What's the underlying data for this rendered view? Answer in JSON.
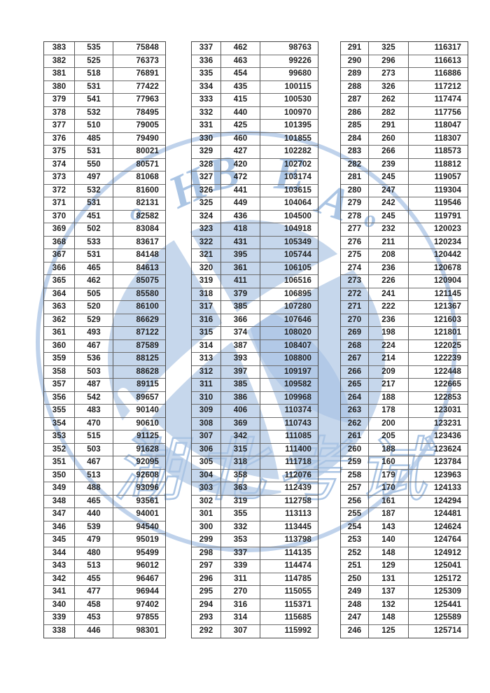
{
  "document": {
    "type": "score-segment-statistics-table",
    "columns_meaning": [
      "score",
      "count_at_score",
      "cumulative_count"
    ]
  },
  "watermark": {
    "letters": [
      "o",
      "H",
      "B",
      "E",
      "A",
      "o"
    ],
    "cjk_text": "湖北考试",
    "blue": "#b6cae6",
    "letter_blue": "#a7c2e3",
    "globe_fill": "#c3d5ec"
  },
  "colors": {
    "table_outer_border": "#464646",
    "table_inner_border": "#6e6e6e",
    "text": "#1d1d1d",
    "page_background": "#ffffff"
  },
  "tables": [
    {
      "rows": [
        [
          383,
          535,
          75848
        ],
        [
          382,
          525,
          76373
        ],
        [
          381,
          518,
          76891
        ],
        [
          380,
          531,
          77422
        ],
        [
          379,
          541,
          77963
        ],
        [
          378,
          532,
          78495
        ],
        [
          377,
          510,
          79005
        ],
        [
          376,
          485,
          79490
        ],
        [
          375,
          531,
          80021
        ],
        [
          374,
          550,
          80571
        ],
        [
          373,
          497,
          81068
        ],
        [
          372,
          532,
          81600
        ],
        [
          371,
          531,
          82131
        ],
        [
          370,
          451,
          82582
        ],
        [
          369,
          502,
          83084
        ],
        [
          368,
          533,
          83617
        ],
        [
          367,
          531,
          84148
        ],
        [
          366,
          465,
          84613
        ],
        [
          365,
          462,
          85075
        ],
        [
          364,
          505,
          85580
        ],
        [
          363,
          520,
          86100
        ],
        [
          362,
          529,
          86629
        ],
        [
          361,
          493,
          87122
        ],
        [
          360,
          467,
          87589
        ],
        [
          359,
          536,
          88125
        ],
        [
          358,
          503,
          88628
        ],
        [
          357,
          487,
          89115
        ],
        [
          356,
          542,
          89657
        ],
        [
          355,
          483,
          90140
        ],
        [
          354,
          470,
          90610
        ],
        [
          353,
          515,
          91125
        ],
        [
          352,
          503,
          91628
        ],
        [
          351,
          467,
          92095
        ],
        [
          350,
          513,
          92608
        ],
        [
          349,
          488,
          93096
        ],
        [
          348,
          465,
          93561
        ],
        [
          347,
          440,
          94001
        ],
        [
          346,
          539,
          94540
        ],
        [
          345,
          479,
          95019
        ],
        [
          344,
          480,
          95499
        ],
        [
          343,
          513,
          96012
        ],
        [
          342,
          455,
          96467
        ],
        [
          341,
          477,
          96944
        ],
        [
          340,
          458,
          97402
        ],
        [
          339,
          453,
          97855
        ],
        [
          338,
          446,
          98301
        ]
      ]
    },
    {
      "rows": [
        [
          337,
          462,
          98763
        ],
        [
          336,
          463,
          99226
        ],
        [
          335,
          454,
          99680
        ],
        [
          334,
          435,
          100115
        ],
        [
          333,
          415,
          100530
        ],
        [
          332,
          440,
          100970
        ],
        [
          331,
          425,
          101395
        ],
        [
          330,
          460,
          101855
        ],
        [
          329,
          427,
          102282
        ],
        [
          328,
          420,
          102702
        ],
        [
          327,
          472,
          103174
        ],
        [
          326,
          441,
          103615
        ],
        [
          325,
          449,
          104064
        ],
        [
          324,
          436,
          104500
        ],
        [
          323,
          418,
          104918
        ],
        [
          322,
          431,
          105349
        ],
        [
          321,
          395,
          105744
        ],
        [
          320,
          361,
          106105
        ],
        [
          319,
          411,
          106516
        ],
        [
          318,
          379,
          106895
        ],
        [
          317,
          385,
          107280
        ],
        [
          316,
          366,
          107646
        ],
        [
          315,
          374,
          108020
        ],
        [
          314,
          387,
          108407
        ],
        [
          313,
          393,
          108800
        ],
        [
          312,
          397,
          109197
        ],
        [
          311,
          385,
          109582
        ],
        [
          310,
          386,
          109968
        ],
        [
          309,
          406,
          110374
        ],
        [
          308,
          369,
          110743
        ],
        [
          307,
          342,
          111085
        ],
        [
          306,
          315,
          111400
        ],
        [
          305,
          318,
          111718
        ],
        [
          304,
          358,
          112076
        ],
        [
          303,
          363,
          112439
        ],
        [
          302,
          319,
          112758
        ],
        [
          301,
          355,
          113113
        ],
        [
          300,
          332,
          113445
        ],
        [
          299,
          353,
          113798
        ],
        [
          298,
          337,
          114135
        ],
        [
          297,
          339,
          114474
        ],
        [
          296,
          311,
          114785
        ],
        [
          295,
          270,
          115055
        ],
        [
          294,
          316,
          115371
        ],
        [
          293,
          314,
          115685
        ],
        [
          292,
          307,
          115992
        ]
      ]
    },
    {
      "rows": [
        [
          291,
          325,
          116317
        ],
        [
          290,
          296,
          116613
        ],
        [
          289,
          273,
          116886
        ],
        [
          288,
          326,
          117212
        ],
        [
          287,
          262,
          117474
        ],
        [
          286,
          282,
          117756
        ],
        [
          285,
          291,
          118047
        ],
        [
          284,
          260,
          118307
        ],
        [
          283,
          266,
          118573
        ],
        [
          282,
          239,
          118812
        ],
        [
          281,
          245,
          119057
        ],
        [
          280,
          247,
          119304
        ],
        [
          279,
          242,
          119546
        ],
        [
          278,
          245,
          119791
        ],
        [
          277,
          232,
          120023
        ],
        [
          276,
          211,
          120234
        ],
        [
          275,
          208,
          120442
        ],
        [
          274,
          236,
          120678
        ],
        [
          273,
          226,
          120904
        ],
        [
          272,
          241,
          121145
        ],
        [
          271,
          222,
          121367
        ],
        [
          270,
          236,
          121603
        ],
        [
          269,
          198,
          121801
        ],
        [
          268,
          224,
          122025
        ],
        [
          267,
          214,
          122239
        ],
        [
          266,
          209,
          122448
        ],
        [
          265,
          217,
          122665
        ],
        [
          264,
          188,
          122853
        ],
        [
          263,
          178,
          123031
        ],
        [
          262,
          200,
          123231
        ],
        [
          261,
          205,
          123436
        ],
        [
          260,
          188,
          123624
        ],
        [
          259,
          160,
          123784
        ],
        [
          258,
          179,
          123963
        ],
        [
          257,
          170,
          124133
        ],
        [
          256,
          161,
          124294
        ],
        [
          255,
          187,
          124481
        ],
        [
          254,
          143,
          124624
        ],
        [
          253,
          140,
          124764
        ],
        [
          252,
          148,
          124912
        ],
        [
          251,
          129,
          125041
        ],
        [
          250,
          131,
          125172
        ],
        [
          249,
          137,
          125309
        ],
        [
          248,
          132,
          125441
        ],
        [
          247,
          148,
          125589
        ],
        [
          246,
          125,
          125714
        ]
      ]
    }
  ]
}
